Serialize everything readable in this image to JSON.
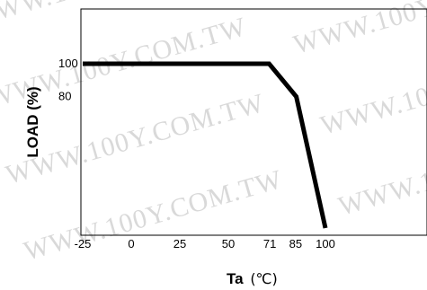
{
  "watermark": "WWW.100Y.COM.TW",
  "chart_data": {
    "type": "line",
    "xlabel": "Ta",
    "xunit": "(℃)",
    "ylabel": "LOAD (%)",
    "x_ticks": [
      "-25",
      "0",
      "25",
      "50",
      "71",
      "85",
      "100"
    ],
    "y_ticks": [
      "100",
      "80"
    ],
    "xlim": [
      -25,
      100
    ],
    "ylim": [
      0,
      120
    ],
    "series": [
      {
        "x": [
          -25,
          71,
          85,
          100
        ],
        "y": [
          100,
          100,
          80,
          0
        ]
      }
    ]
  }
}
